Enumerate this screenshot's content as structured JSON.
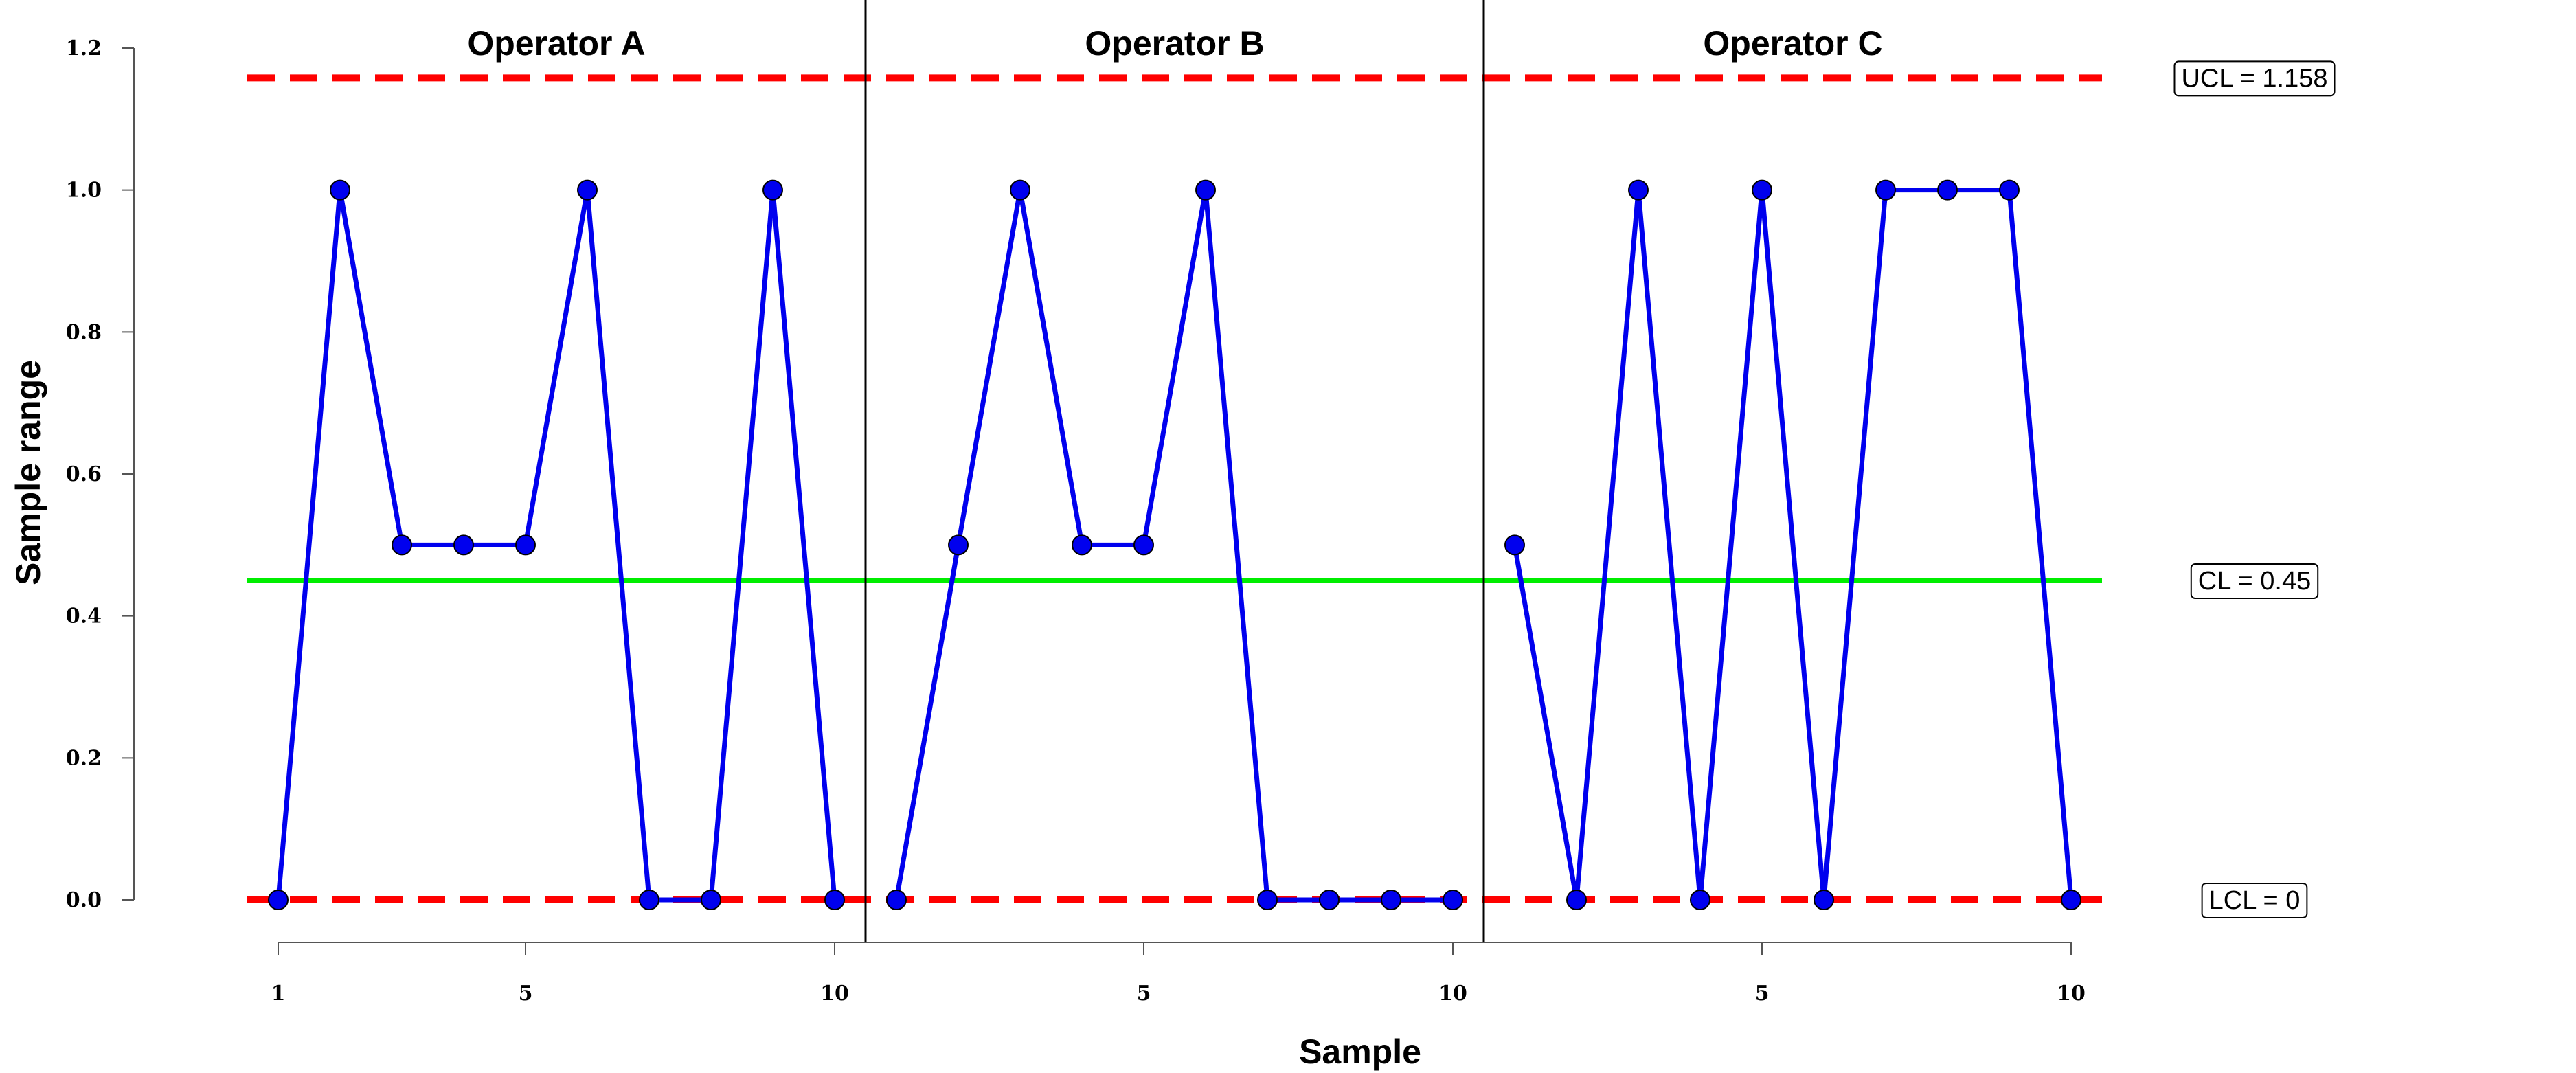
{
  "chart_data": {
    "type": "line",
    "xlabel": "Sample",
    "ylabel": "Sample range",
    "ylim": [
      0,
      1.2
    ],
    "y_ticks": [
      "0.0",
      "0.2",
      "0.4",
      "0.6",
      "0.8",
      "1.0",
      "1.2"
    ],
    "x_tick_labels": [
      "1",
      "5",
      "10",
      "5",
      "10",
      "5",
      "10"
    ],
    "x_tick_positions": [
      1,
      5,
      10,
      15,
      20,
      25,
      30
    ],
    "panels": [
      {
        "title": "Operator A",
        "values": [
          0,
          1,
          0.5,
          0.5,
          0.5,
          1,
          0,
          0,
          1,
          0
        ]
      },
      {
        "title": "Operator B",
        "values": [
          0,
          0.5,
          1,
          0.5,
          0.5,
          1,
          0,
          0,
          0,
          0
        ]
      },
      {
        "title": "Operator C",
        "values": [
          0.5,
          0,
          1,
          0,
          1,
          0,
          1,
          1,
          1,
          0
        ]
      }
    ],
    "limits": {
      "ucl": {
        "value": 1.158,
        "label": "UCL = 1.158"
      },
      "cl": {
        "value": 0.45,
        "label": "CL = 0.45"
      },
      "lcl": {
        "value": 0,
        "label": "LCL = 0"
      }
    },
    "grid": false,
    "colors": {
      "series": "#0000ee",
      "marker_fill": "#0000ee",
      "control_limits": "#ff0000",
      "center_line": "#00ee00"
    }
  }
}
